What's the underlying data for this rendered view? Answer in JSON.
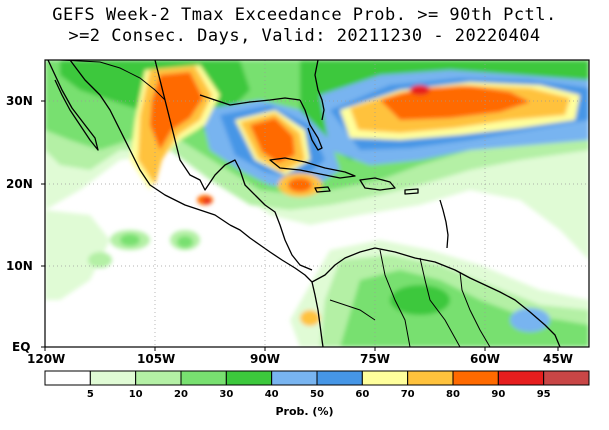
{
  "title_line1": "GEFS Week-2 Tmax Exceedance Prob. >= 90th Pctl.",
  "title_line2": ">=2 Consec. Days, Valid: 20211230 - 20220404",
  "lat_labels": [
    "30N",
    "20N",
    "10N",
    "EQ"
  ],
  "lon_labels": [
    "120W",
    "105W",
    "90W",
    "75W",
    "60W",
    "45W"
  ],
  "colorbar": {
    "title": "Prob. (%)",
    "labels": [
      "5",
      "10",
      "20",
      "30",
      "40",
      "50",
      "60",
      "70",
      "80",
      "90",
      "95"
    ],
    "colors": [
      "#ffffff",
      "#e0fbd5",
      "#b4f0a5",
      "#78e070",
      "#3cc83c",
      "#78b4f0",
      "#4696e6",
      "#ffff9c",
      "#ffc23c",
      "#ff6a00",
      "#e61e1e",
      "#c84646"
    ]
  },
  "colors": {
    "land_outline": "#000000",
    "grid": "#9a9a9a"
  }
}
